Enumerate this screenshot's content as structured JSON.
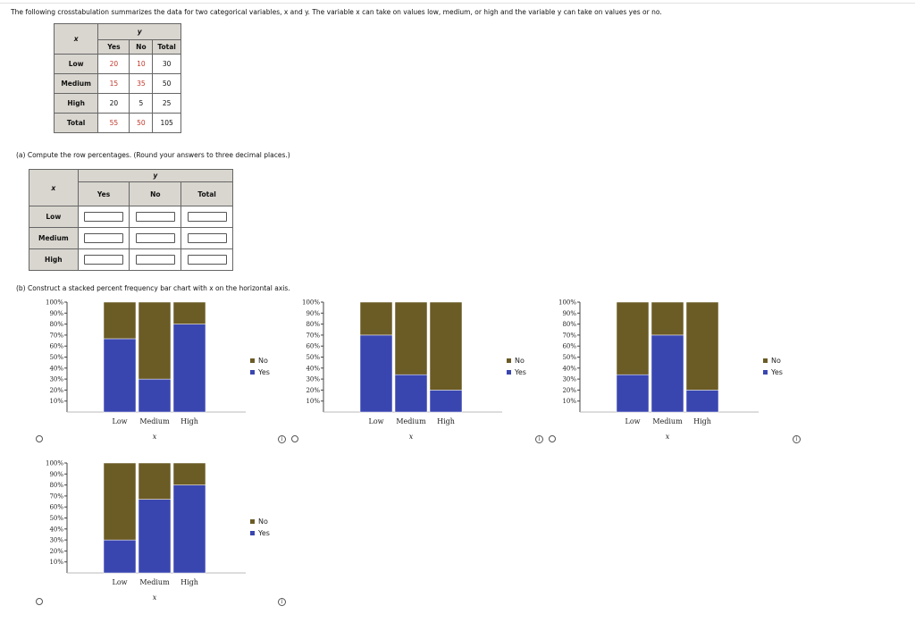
{
  "intro_text": "The following crosstabulation summarizes the data for two categorical variables, x and y. The variable x can take on values low, medium, or high and the variable y can take on values yes or no.",
  "crosstab": {
    "x_label": "x",
    "y_label": "y",
    "columns": [
      "Yes",
      "No",
      "Total"
    ],
    "rows": [
      {
        "label": "Low",
        "values": [
          "20",
          "10",
          "30"
        ]
      },
      {
        "label": "Medium",
        "values": [
          "15",
          "35",
          "50"
        ]
      },
      {
        "label": "High",
        "values": [
          "20",
          "5",
          "25"
        ]
      },
      {
        "label": "Total",
        "values": [
          "55",
          "50",
          "105"
        ]
      }
    ]
  },
  "part_a": {
    "prompt": "(a) Compute the row percentages. (Round your answers to three decimal places.)",
    "x_label": "x",
    "y_label": "y",
    "columns": [
      "Yes",
      "No",
      "Total"
    ],
    "rows": [
      "Low",
      "Medium",
      "High"
    ],
    "input_values": [
      "",
      "",
      "",
      "",
      "",
      "",
      "",
      "",
      ""
    ]
  },
  "part_b": {
    "prompt": "(b) Construct a stacked percent frequency bar chart with x on the horizontal axis."
  },
  "colors": {
    "yes": "#3a46b0",
    "no": "#6b5b25"
  },
  "chart_data": [
    {
      "type": "bar",
      "stacked": true,
      "categories": [
        "Low",
        "Medium",
        "High"
      ],
      "xlabel": "x",
      "ylim": [
        0,
        100
      ],
      "series": [
        {
          "name": "Yes",
          "values": [
            66.7,
            30,
            80
          ]
        },
        {
          "name": "No",
          "values": [
            33.3,
            70,
            20
          ]
        }
      ],
      "y_ticks": [
        "10%",
        "20%",
        "30%",
        "40%",
        "50%",
        "60%",
        "70%",
        "80%",
        "90%",
        "100%"
      ],
      "legend": [
        "No",
        "Yes"
      ],
      "legend_position": "right"
    },
    {
      "type": "bar",
      "stacked": true,
      "categories": [
        "Low",
        "Medium",
        "High"
      ],
      "xlabel": "x",
      "ylim": [
        0,
        100
      ],
      "series": [
        {
          "name": "Yes",
          "values": [
            70,
            34,
            20
          ]
        },
        {
          "name": "No",
          "values": [
            30,
            66,
            80
          ]
        }
      ],
      "y_ticks": [
        "10%",
        "20%",
        "30%",
        "40%",
        "50%",
        "60%",
        "70%",
        "80%",
        "90%",
        "100%"
      ],
      "legend": [
        "No",
        "Yes"
      ],
      "legend_position": "right"
    },
    {
      "type": "bar",
      "stacked": true,
      "categories": [
        "Low",
        "Medium",
        "High"
      ],
      "xlabel": "x",
      "ylim": [
        0,
        100
      ],
      "series": [
        {
          "name": "Yes",
          "values": [
            34,
            70,
            20
          ]
        },
        {
          "name": "No",
          "values": [
            66,
            30,
            80
          ]
        }
      ],
      "y_ticks": [
        "10%",
        "20%",
        "30%",
        "40%",
        "50%",
        "60%",
        "70%",
        "80%",
        "90%",
        "100%"
      ],
      "legend": [
        "No",
        "Yes"
      ],
      "legend_position": "right"
    },
    {
      "type": "bar",
      "stacked": true,
      "categories": [
        "Low",
        "Medium",
        "High"
      ],
      "xlabel": "x",
      "ylim": [
        0,
        100
      ],
      "series": [
        {
          "name": "Yes",
          "values": [
            30,
            67,
            80
          ]
        },
        {
          "name": "No",
          "values": [
            70,
            33,
            20
          ]
        }
      ],
      "y_ticks": [
        "10%",
        "20%",
        "30%",
        "40%",
        "50%",
        "60%",
        "70%",
        "80%",
        "90%",
        "100%"
      ],
      "legend": [
        "No",
        "Yes"
      ],
      "legend_position": "right"
    }
  ]
}
